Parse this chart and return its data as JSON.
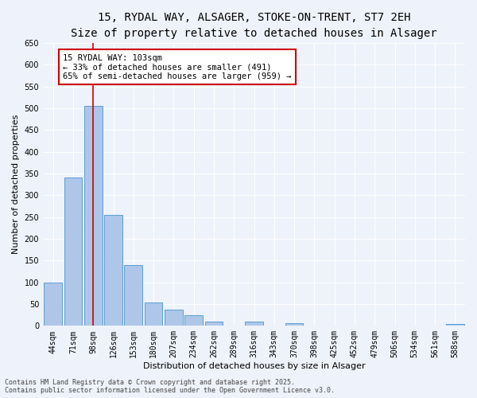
{
  "title_line1": "15, RYDAL WAY, ALSAGER, STOKE-ON-TRENT, ST7 2EH",
  "title_line2": "Size of property relative to detached houses in Alsager",
  "xlabel": "Distribution of detached houses by size in Alsager",
  "ylabel": "Number of detached properties",
  "categories": [
    "44sqm",
    "71sqm",
    "98sqm",
    "126sqm",
    "153sqm",
    "180sqm",
    "207sqm",
    "234sqm",
    "262sqm",
    "289sqm",
    "316sqm",
    "343sqm",
    "370sqm",
    "398sqm",
    "425sqm",
    "452sqm",
    "479sqm",
    "506sqm",
    "534sqm",
    "561sqm",
    "588sqm"
  ],
  "values": [
    100,
    340,
    505,
    255,
    140,
    53,
    38,
    25,
    10,
    0,
    10,
    0,
    7,
    0,
    0,
    0,
    0,
    0,
    0,
    0,
    5
  ],
  "bar_color": "#aec6e8",
  "bar_edge_color": "#5a9fd4",
  "vertical_line_x": 2,
  "annotation_text": "15 RYDAL WAY: 103sqm\n← 33% of detached houses are smaller (491)\n65% of semi-detached houses are larger (959) →",
  "annotation_box_color": "#ffffff",
  "annotation_border_color": "#cc0000",
  "background_color": "#eef2fa",
  "grid_color": "#ffffff",
  "ylim": [
    0,
    650
  ],
  "yticks": [
    0,
    50,
    100,
    150,
    200,
    250,
    300,
    350,
    400,
    450,
    500,
    550,
    600,
    650
  ],
  "footer_line1": "Contains HM Land Registry data © Crown copyright and database right 2025.",
  "footer_line2": "Contains public sector information licensed under the Open Government Licence v3.0.",
  "title_fontsize": 10,
  "subtitle_fontsize": 9,
  "axis_label_fontsize": 8,
  "tick_fontsize": 7,
  "annotation_fontsize": 7.5,
  "footer_fontsize": 6
}
